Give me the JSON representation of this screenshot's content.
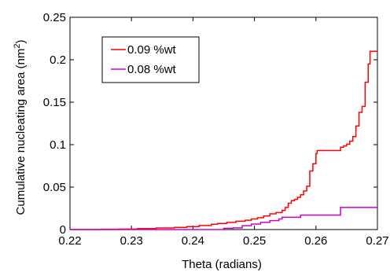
{
  "chart_data": {
    "type": "line",
    "title": "",
    "xlabel": "Theta (radians)",
    "ylabel": "Cumulative nucleating area (nm",
    "ylabel_sup": "2",
    "ylabel_close": ")",
    "xlim": [
      0.22,
      0.27
    ],
    "ylim": [
      0,
      0.25
    ],
    "xticks": [
      "0.22",
      "0.23",
      "0.24",
      "0.25",
      "0.26",
      "0.27"
    ],
    "yticks": [
      "0",
      "0.05",
      "0.1",
      "0.15",
      "0.2",
      "0.25"
    ],
    "grid": false,
    "legend_position": "top-left",
    "series": [
      {
        "name": "0.09 %wt",
        "color": "#ff0000",
        "points": [
          [
            0.22,
            0.0
          ],
          [
            0.225,
            0.0003
          ],
          [
            0.228,
            0.0006
          ],
          [
            0.231,
            0.0012
          ],
          [
            0.234,
            0.0018
          ],
          [
            0.237,
            0.0025
          ],
          [
            0.239,
            0.0035
          ],
          [
            0.241,
            0.0048
          ],
          [
            0.243,
            0.0062
          ],
          [
            0.244,
            0.0072
          ],
          [
            0.2455,
            0.0085
          ],
          [
            0.247,
            0.0098
          ],
          [
            0.2485,
            0.011
          ],
          [
            0.2495,
            0.0125
          ],
          [
            0.2505,
            0.014
          ],
          [
            0.2515,
            0.016
          ],
          [
            0.2525,
            0.0185
          ],
          [
            0.2535,
            0.02
          ],
          [
            0.2545,
            0.0225
          ],
          [
            0.255,
            0.026
          ],
          [
            0.2555,
            0.031
          ],
          [
            0.256,
            0.034
          ],
          [
            0.2565,
            0.0355
          ],
          [
            0.257,
            0.038
          ],
          [
            0.2575,
            0.041
          ],
          [
            0.258,
            0.0455
          ],
          [
            0.2585,
            0.051
          ],
          [
            0.259,
            0.069
          ],
          [
            0.2595,
            0.0775
          ],
          [
            0.26,
            0.0895
          ],
          [
            0.2602,
            0.093
          ],
          [
            0.2635,
            0.093
          ],
          [
            0.264,
            0.097
          ],
          [
            0.2645,
            0.0985
          ],
          [
            0.265,
            0.1005
          ],
          [
            0.2655,
            0.104
          ],
          [
            0.266,
            0.1095
          ],
          [
            0.2665,
            0.122
          ],
          [
            0.267,
            0.138
          ],
          [
            0.2675,
            0.145
          ],
          [
            0.268,
            0.1735
          ],
          [
            0.2685,
            0.195
          ],
          [
            0.2688,
            0.21
          ],
          [
            0.27,
            0.21
          ]
        ]
      },
      {
        "name": "0.08 %wt",
        "color": "#cc00cc",
        "points": [
          [
            0.22,
            0.0
          ],
          [
            0.24,
            0.0
          ],
          [
            0.245,
            0.0015
          ],
          [
            0.2465,
            0.002
          ],
          [
            0.248,
            0.0045
          ],
          [
            0.2495,
            0.0065
          ],
          [
            0.251,
            0.0085
          ],
          [
            0.2525,
            0.0105
          ],
          [
            0.254,
            0.0125
          ],
          [
            0.2545,
            0.0145
          ],
          [
            0.257,
            0.0145
          ],
          [
            0.2575,
            0.017
          ],
          [
            0.2635,
            0.017
          ],
          [
            0.264,
            0.026
          ],
          [
            0.27,
            0.026
          ]
        ]
      }
    ]
  }
}
